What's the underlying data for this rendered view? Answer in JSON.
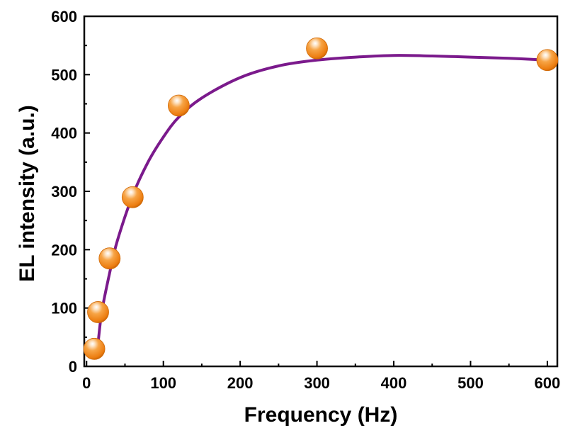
{
  "chart_data": {
    "type": "scatter",
    "title": "",
    "xlabel": "Frequency (Hz)",
    "ylabel": "EL intensity (a.u.)",
    "xlim": [
      -3,
      613
    ],
    "ylim": [
      0,
      600
    ],
    "xticks": [
      0,
      100,
      200,
      300,
      400,
      500,
      600
    ],
    "yticks": [
      0,
      100,
      200,
      300,
      400,
      500,
      600
    ],
    "grid": false,
    "legend": "none",
    "series": [
      {
        "marker": "sphere",
        "color": "#f28a1c",
        "x": [
          10,
          15,
          30,
          60,
          120,
          300,
          600
        ],
        "y": [
          30,
          93,
          185,
          290,
          447,
          545,
          525
        ]
      }
    ],
    "fit_curve": {
      "color": "#7b1a8c",
      "x": [
        15,
        20,
        30,
        40,
        60,
        80,
        100,
        120,
        150,
        200,
        250,
        300,
        350,
        400,
        450,
        500,
        550,
        600
      ],
      "y": [
        40,
        95,
        160,
        215,
        293,
        350,
        393,
        427,
        460,
        495,
        515,
        525,
        530,
        533,
        532,
        530,
        528,
        525
      ]
    }
  }
}
